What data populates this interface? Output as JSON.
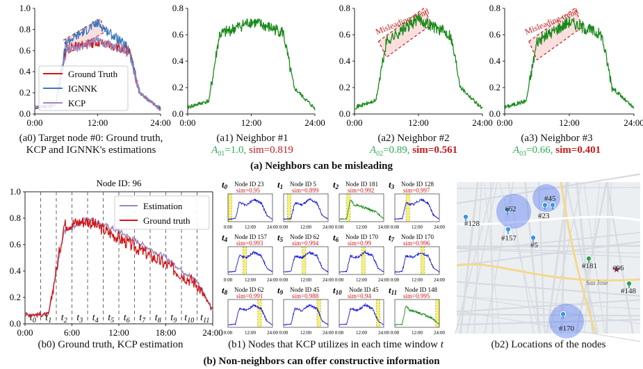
{
  "colors": {
    "green": "#1a8a1a",
    "red": "#d11515",
    "blue": "#3b78bf",
    "purple": "#9b86c0",
    "mini_blue": "#1515d9",
    "mark_yellow": "#efe800"
  },
  "chart_data": [
    {
      "id": "a0",
      "type": "line",
      "title": "",
      "ylim": [
        0,
        1.0
      ],
      "yticks": [
        "0.0",
        "0.2",
        "0.4",
        "0.6",
        "0.8",
        "1.0"
      ],
      "xticks": [
        "0:00",
        "12:00",
        "24:00"
      ],
      "series": [
        {
          "name": "Ground Truth",
          "color": "red",
          "trend": [
            [
              0,
              0.06
            ],
            [
              4,
              0.08
            ],
            [
              6,
              0.62
            ],
            [
              12,
              0.68
            ],
            [
              18,
              0.6
            ],
            [
              20,
              0.2
            ],
            [
              24,
              0.04
            ]
          ]
        },
        {
          "name": "IGNNK",
          "color": "blue",
          "trend": [
            [
              0,
              0.06
            ],
            [
              4,
              0.09
            ],
            [
              6,
              0.68
            ],
            [
              12,
              0.86
            ],
            [
              18,
              0.62
            ],
            [
              20,
              0.2
            ],
            [
              24,
              0.05
            ]
          ]
        },
        {
          "name": "KCP",
          "color": "purple",
          "trend": [
            [
              0,
              0.06
            ],
            [
              4,
              0.09
            ],
            [
              6,
              0.6
            ],
            [
              12,
              0.7
            ],
            [
              18,
              0.58
            ],
            [
              20,
              0.2
            ],
            [
              24,
              0.04
            ]
          ]
        }
      ],
      "legend": [
        "Ground Truth",
        "IGNNK",
        "KCP"
      ]
    },
    {
      "id": "a1",
      "type": "line",
      "ylim": [
        0,
        0.8
      ],
      "yticks": [
        "0.0",
        "0.2",
        "0.4",
        "0.6",
        "0.8"
      ],
      "xticks": [
        "0:00",
        "12:00",
        "24:00"
      ],
      "series": [
        {
          "name": "Neighbor #1",
          "color": "green",
          "trend": [
            [
              0,
              0.05
            ],
            [
              4,
              0.1
            ],
            [
              6,
              0.6
            ],
            [
              12,
              0.7
            ],
            [
              18,
              0.62
            ],
            [
              20,
              0.2
            ],
            [
              24,
              0.04
            ]
          ]
        }
      ]
    },
    {
      "id": "a2",
      "type": "line",
      "ylim": [
        0,
        0.8
      ],
      "yticks": [
        "0.0",
        "0.2",
        "0.4",
        "0.6",
        "0.8"
      ],
      "xticks": [
        "0:00",
        "12:00",
        "24:00"
      ],
      "series": [
        {
          "name": "Neighbor #2",
          "color": "green",
          "trend": [
            [
              0,
              0.05
            ],
            [
              4,
              0.1
            ],
            [
              6,
              0.55
            ],
            [
              12,
              0.72
            ],
            [
              18,
              0.6
            ],
            [
              20,
              0.2
            ],
            [
              24,
              0.04
            ]
          ]
        }
      ],
      "annotation": "Misleading trend"
    },
    {
      "id": "a3",
      "type": "line",
      "ylim": [
        0,
        0.8
      ],
      "yticks": [
        "0.0",
        "0.2",
        "0.4",
        "0.6",
        "0.8"
      ],
      "xticks": [
        "0:00",
        "12:00",
        "24:00"
      ],
      "series": [
        {
          "name": "Neighbor #3",
          "color": "green",
          "trend": [
            [
              0,
              0.05
            ],
            [
              4,
              0.1
            ],
            [
              6,
              0.55
            ],
            [
              12,
              0.7
            ],
            [
              18,
              0.6
            ],
            [
              20,
              0.2
            ],
            [
              24,
              0.04
            ]
          ]
        }
      ],
      "annotation": "Misleading trend"
    },
    {
      "id": "b0",
      "type": "line",
      "title": "Node ID: 96",
      "ylim": [
        0,
        1.0
      ],
      "yticks": [
        "0.0",
        "0.2",
        "0.4",
        "0.6",
        "0.8",
        "1.0"
      ],
      "xticks": [
        "0:00",
        "6:00",
        "12:00",
        "18:00",
        "24:00"
      ],
      "series": [
        {
          "name": "Estimation",
          "color": "purple",
          "trend": [
            [
              0,
              0.07
            ],
            [
              3,
              0.07
            ],
            [
              5,
              0.7
            ],
            [
              8,
              0.8
            ],
            [
              12,
              0.7
            ],
            [
              18,
              0.5
            ],
            [
              22,
              0.32
            ],
            [
              24,
              0.1
            ]
          ]
        },
        {
          "name": "Ground truth",
          "color": "red",
          "trend": [
            [
              0,
              0.07
            ],
            [
              3,
              0.07
            ],
            [
              5,
              0.75
            ],
            [
              8,
              0.78
            ],
            [
              12,
              0.65
            ],
            [
              18,
              0.45
            ],
            [
              22,
              0.3
            ],
            [
              24,
              0.1
            ]
          ]
        }
      ],
      "legend": [
        "Estimation",
        "Ground truth"
      ],
      "windows": [
        "t0",
        "t1",
        "t2",
        "t3",
        "t4",
        "t5",
        "t6",
        "t7",
        "t8",
        "t9",
        "t10",
        "t11"
      ]
    }
  ],
  "captions": {
    "a0": [
      "(a0) Target node #0: Ground truth,",
      "KCP and IGNNK's estimations"
    ],
    "a1": "(a1) Neighbor #1",
    "a1_a": "A",
    "a1_sub": "01",
    "a1_val": "=1.0,",
    "a1_sim": "sim=0.819",
    "a2": "(a2) Neighbor #2",
    "a2_a": "A",
    "a2_sub": "02",
    "a2_val": "=0.89,",
    "a2_sim": "sim=0.561",
    "a3": "(a3) Neighbor #3",
    "a3_a": "A",
    "a3_sub": "03",
    "a3_val": "=0.66,",
    "a3_sim": "sim=0.401",
    "part_a": "(a) Neighbors can be misleading",
    "b0": "(b0) Ground truth, KCP estimation",
    "b1_pre": "(b1) Nodes that KCP utilizes in each time window ",
    "b1_t": "t",
    "b2": "(b2) Locations of the nodes",
    "part_b": "(b) Non-neighbors can offer constructive information"
  },
  "mini": [
    {
      "t": "t",
      "sub": "0",
      "node": "Node ID 23",
      "sim": "sim=0.95",
      "color": "blue",
      "win": 1
    },
    {
      "t": "t",
      "sub": "1",
      "node": "Node ID 5",
      "sim": "sim=0.899",
      "color": "blue",
      "win": 2
    },
    {
      "t": "t",
      "sub": "2",
      "node": "Node ID 181",
      "sim": "sim=0.992",
      "color": "green",
      "win": 3
    },
    {
      "t": "t",
      "sub": "3",
      "node": "Node ID 128",
      "sim": "sim=0.997",
      "color": "blue",
      "win": 4
    },
    {
      "t": "t",
      "sub": "4",
      "node": "Node ID 157",
      "sim": "sim=0.993",
      "color": "blue",
      "win": 5
    },
    {
      "t": "t",
      "sub": "5",
      "node": "Node ID 62",
      "sim": "sim=0.994",
      "color": "blue",
      "win": 6
    },
    {
      "t": "t",
      "sub": "6",
      "node": "Node ID 170",
      "sim": "sim=0.99",
      "color": "blue",
      "win": 7
    },
    {
      "t": "t",
      "sub": "7",
      "node": "Node ID 170",
      "sim": "sim=0.996",
      "color": "blue",
      "win": 8
    },
    {
      "t": "t",
      "sub": "8",
      "node": "Node ID 62",
      "sim": "sim=0.991",
      "color": "blue",
      "win": 9
    },
    {
      "t": "t",
      "sub": "9",
      "node": "Node ID 45",
      "sim": "sim=0.988",
      "color": "blue",
      "win": 10
    },
    {
      "t": "t",
      "sub": "10",
      "node": "Node ID 45",
      "sim": "sim=0.94",
      "color": "blue",
      "win": 11
    },
    {
      "t": "t",
      "sub": "11",
      "node": "Node ID 148",
      "sim": "sim=0.995",
      "color": "green",
      "win": 12
    }
  ],
  "mini_xticks": [
    "0:00",
    "12:00",
    "24:00"
  ],
  "map": {
    "city": "San Jose",
    "pins": [
      "#128",
      "#62",
      "#45",
      "#23",
      "#157",
      "#5",
      "#181",
      "#96",
      "#148",
      "#170"
    ]
  }
}
